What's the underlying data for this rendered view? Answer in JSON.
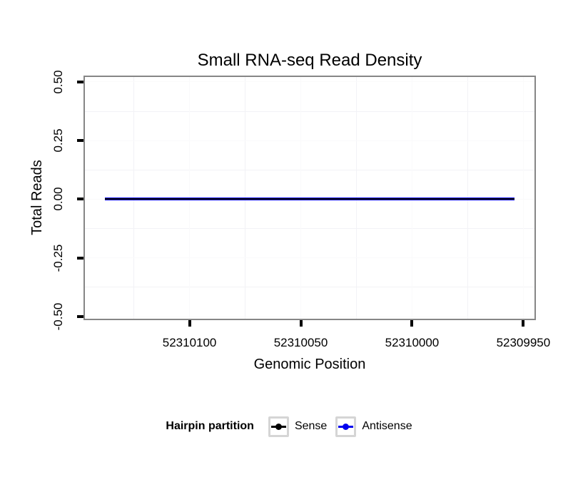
{
  "title": "Small RNA-seq Read Density",
  "axes": {
    "x_label": "Genomic Position",
    "y_label": "Total Reads"
  },
  "legend": {
    "title": "Hairpin partition",
    "items": [
      {
        "label": "Sense",
        "color": "#000000"
      },
      {
        "label": "Antisense",
        "color": "#0000ee"
      }
    ]
  },
  "colors": {
    "panel_border": "#868686",
    "tick": "#000000",
    "grid_major": "#fafafb",
    "grid_minor": "#f2f2f6",
    "legend_key_border": "#d5d5d5",
    "text": "#000000"
  },
  "chart_data": {
    "type": "line",
    "title": "Small RNA-seq Read Density",
    "xlabel": "Genomic Position",
    "ylabel": "Total Reads",
    "grid": {
      "major": true,
      "minor": true
    },
    "legend_position": "bottom",
    "x_axis": {
      "reversed": true,
      "domain_left": 52310147,
      "domain_right": 52309945,
      "ticks": [
        52310100,
        52310050,
        52310000,
        52309950
      ],
      "tick_labels": [
        "52310100",
        "52310050",
        "52310000",
        "52309950"
      ],
      "minor_step": 25
    },
    "y_axis": {
      "domain_top": 0.521,
      "domain_bottom": -0.509,
      "ticks": [
        0.5,
        0.25,
        0.0,
        -0.25,
        -0.5
      ],
      "tick_labels": [
        "0.50",
        "0.25",
        "0.00",
        "-0.25",
        "-0.50"
      ],
      "ylim": [
        -0.5,
        0.5
      ]
    },
    "series": [
      {
        "name": "Sense",
        "color": "#000000",
        "x_start": 52310138,
        "x_end": 52309954,
        "value": 0,
        "line_width": 2
      },
      {
        "name": "Antisense",
        "color": "#0000ee",
        "x_start": 52310138,
        "x_end": 52309954,
        "value": 0,
        "line_width": 4
      }
    ]
  }
}
